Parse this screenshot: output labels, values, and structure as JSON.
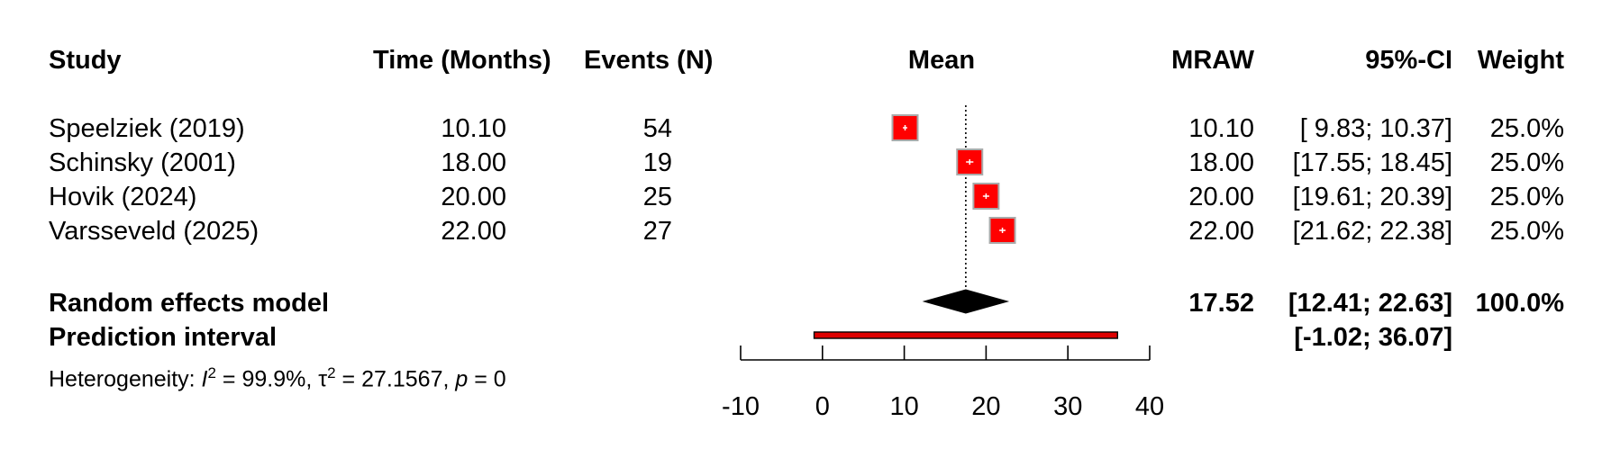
{
  "headers": {
    "study": "Study",
    "time": "Time (Months)",
    "events": "Events (N)",
    "mean": "Mean",
    "mraw": "MRAW",
    "ci": "95%-CI",
    "weight": "Weight"
  },
  "studies": [
    {
      "name": "Speelziek (2019)",
      "time": "10.10",
      "events": "54",
      "mraw": "10.10",
      "ci": "[ 9.83; 10.37]",
      "weight": "25.0%"
    },
    {
      "name": "Schinsky (2001)",
      "time": "18.00",
      "events": "19",
      "mraw": "18.00",
      "ci": "[17.55; 18.45]",
      "weight": "25.0%"
    },
    {
      "name": "Hovik (2024)",
      "time": "20.00",
      "events": "25",
      "mraw": "20.00",
      "ci": "[19.61; 20.39]",
      "weight": "25.0%"
    },
    {
      "name": "Varsseveld (2025)",
      "time": "22.00",
      "events": "27",
      "mraw": "22.00",
      "ci": "[21.62; 22.38]",
      "weight": "25.0%"
    }
  ],
  "summary": {
    "random_label": "Random effects model",
    "random_mraw": "17.52",
    "random_ci": "[12.41; 22.63]",
    "random_weight": "100.0%",
    "prediction_label": "Prediction interval",
    "prediction_ci": "[-1.02; 36.07]",
    "heterogeneity_prefix": "Heterogeneity: ",
    "i2_symbol": "I",
    "i2_value": " = 99.9%, ",
    "tau_symbol": "τ",
    "tau_value": " = 27.1567, ",
    "p_symbol": "p",
    "p_value": " = 0"
  },
  "colors": {
    "box_fill": "#ff0000",
    "box_border": "#aaaaaa",
    "diamond": "#000000",
    "prediction_fill": "#dd0000"
  },
  "chart_data": {
    "type": "forest",
    "xlim": [
      -10,
      40
    ],
    "ticks": [
      -10,
      0,
      10,
      20,
      30,
      40
    ],
    "reference_line": 17.52,
    "studies": [
      {
        "label": "Speelziek (2019)",
        "mean": 10.1,
        "lower": 9.83,
        "upper": 10.37,
        "weight": 25.0
      },
      {
        "label": "Schinsky (2001)",
        "mean": 18.0,
        "lower": 17.55,
        "upper": 18.45,
        "weight": 25.0
      },
      {
        "label": "Hovik (2024)",
        "mean": 20.0,
        "lower": 19.61,
        "upper": 20.39,
        "weight": 25.0
      },
      {
        "label": "Varsseveld (2025)",
        "mean": 22.0,
        "lower": 21.62,
        "upper": 22.38,
        "weight": 25.0
      }
    ],
    "random_effects": {
      "mean": 17.52,
      "lower": 12.41,
      "upper": 22.63
    },
    "prediction_interval": {
      "lower": -1.02,
      "upper": 36.07
    }
  }
}
